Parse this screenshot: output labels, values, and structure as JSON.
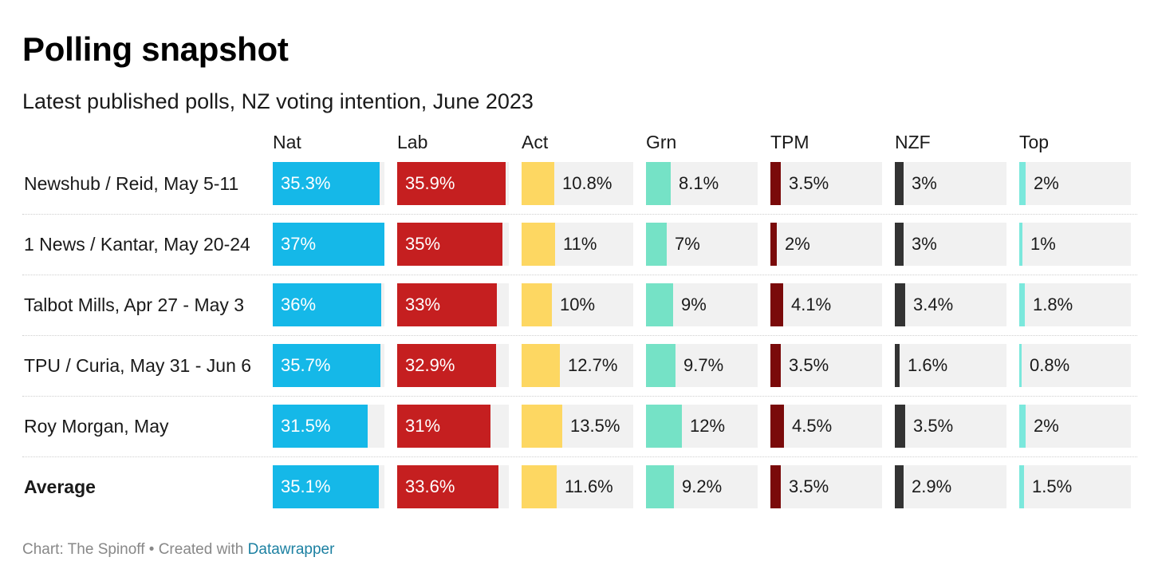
{
  "chart_data": {
    "type": "table",
    "title": "Polling snapshot",
    "subtitle": "Latest published polls, NZ voting intention, June 2023",
    "columns": [
      {
        "name": "Nat",
        "color": "#15b8e8",
        "text_color": "#ffffff",
        "max": 37
      },
      {
        "name": "Lab",
        "color": "#c51f20",
        "text_color": "#ffffff",
        "max": 37
      },
      {
        "name": "Act",
        "color": "#fdd762",
        "text_color": "#1a1a1a",
        "max": 37
      },
      {
        "name": "Grn",
        "color": "#75e2c6",
        "text_color": "#1a1a1a",
        "max": 37
      },
      {
        "name": "TPM",
        "color": "#7a0a0a",
        "text_color": "#1a1a1a",
        "max": 37
      },
      {
        "name": "NZF",
        "color": "#333333",
        "text_color": "#1a1a1a",
        "max": 37
      },
      {
        "name": "Top",
        "color": "#7be8dc",
        "text_color": "#1a1a1a",
        "max": 37
      }
    ],
    "rows": [
      {
        "label": "Newshub / Reid, May 5-11",
        "bold": false,
        "values": [
          35.3,
          35.9,
          10.8,
          8.1,
          3.5,
          3,
          2
        ],
        "labels": [
          "35.3%",
          "35.9%",
          "10.8%",
          "8.1%",
          "3.5%",
          "3%",
          "2%"
        ]
      },
      {
        "label": "1 News / Kantar, May 20-24",
        "bold": false,
        "values": [
          37,
          35,
          11,
          7,
          2,
          3,
          1
        ],
        "labels": [
          "37%",
          "35%",
          "11%",
          "7%",
          "2%",
          "3%",
          "1%"
        ]
      },
      {
        "label": "Talbot Mills, Apr 27 - May 3",
        "bold": false,
        "values": [
          36,
          33,
          10,
          9,
          4.1,
          3.4,
          1.8
        ],
        "labels": [
          "36%",
          "33%",
          "10%",
          "9%",
          "4.1%",
          "3.4%",
          "1.8%"
        ]
      },
      {
        "label": "TPU / Curia, May 31 - Jun 6",
        "bold": false,
        "values": [
          35.7,
          32.9,
          12.7,
          9.7,
          3.5,
          1.6,
          0.8
        ],
        "labels": [
          "35.7%",
          "32.9%",
          "12.7%",
          "9.7%",
          "3.5%",
          "1.6%",
          "0.8%"
        ]
      },
      {
        "label": "Roy Morgan, May",
        "bold": false,
        "values": [
          31.5,
          31,
          13.5,
          12,
          4.5,
          3.5,
          2
        ],
        "labels": [
          "31.5%",
          "31%",
          "13.5%",
          "12%",
          "4.5%",
          "3.5%",
          "2%"
        ]
      },
      {
        "label": "Average",
        "bold": true,
        "values": [
          35.1,
          33.6,
          11.6,
          9.2,
          3.5,
          2.9,
          1.5
        ],
        "labels": [
          "35.1%",
          "33.6%",
          "11.6%",
          "9.2%",
          "3.5%",
          "2.9%",
          "1.5%"
        ]
      }
    ]
  },
  "footer": {
    "source_text": "Chart: The Spinoff • Created with ",
    "link_text": "Datawrapper"
  }
}
